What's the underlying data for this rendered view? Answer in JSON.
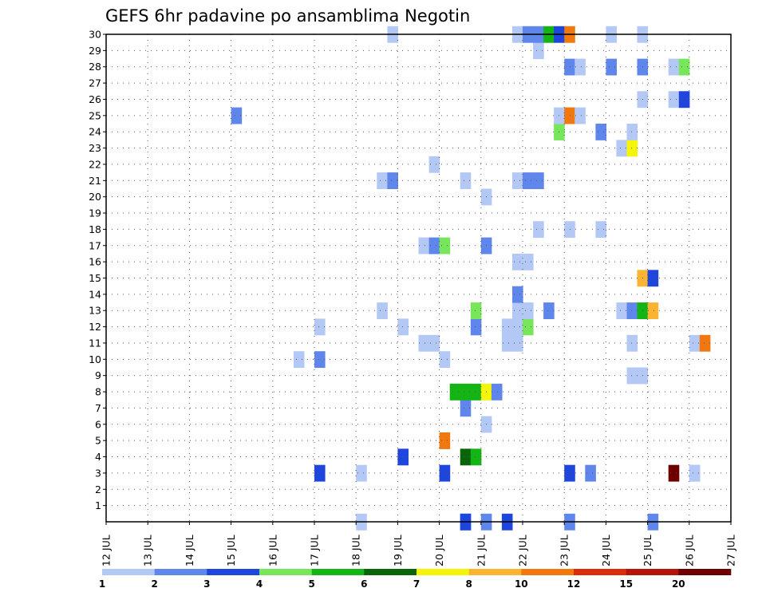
{
  "chart_data": {
    "type": "heatmap",
    "title": "GEFS 6hr padavine po ansamblima Negotin",
    "xlabel": "",
    "ylabel": "",
    "x_tick_labels": [
      "12 JUL",
      "13 JUL",
      "14 JUL",
      "15 JUL",
      "16 JUL",
      "17 JUL",
      "18 JUL",
      "19 JUL",
      "20 JUL",
      "21 JUL",
      "22 JUL",
      "23 JUL",
      "24 JUL",
      "25 JUL",
      "26 JUL",
      "27 JUL"
    ],
    "xlim": [
      0,
      60
    ],
    "x_units": "6-hour steps from 12 JUL 00Z",
    "y_tick_labels": [
      "1",
      "2",
      "3",
      "4",
      "5",
      "6",
      "7",
      "8",
      "9",
      "10",
      "11",
      "12",
      "13",
      "14",
      "15",
      "16",
      "17",
      "18",
      "19",
      "20",
      "21",
      "22",
      "23",
      "24",
      "25",
      "26",
      "27",
      "28",
      "29",
      "30"
    ],
    "ylim": [
      0,
      30
    ],
    "grid": true,
    "colorbar": {
      "labels": [
        "1",
        "2",
        "3",
        "4",
        "5",
        "6",
        "7",
        "8",
        "10",
        "12",
        "15",
        "20"
      ],
      "colors": [
        "#b4c8f5",
        "#5f87eb",
        "#1e46dc",
        "#78e65a",
        "#14b414",
        "#0a640a",
        "#f5f50a",
        "#fab432",
        "#f0780f",
        "#dc2d0a",
        "#b4140a",
        "#6e0000"
      ]
    },
    "cells": [
      {
        "x": 6.0,
        "y": 0,
        "c": 0
      },
      {
        "x": 8.5,
        "y": 0,
        "c": 1
      },
      {
        "x": 9.0,
        "y": 0,
        "c": 1
      },
      {
        "x": 8.5,
        "y": 0,
        "c": 2
      },
      {
        "x": 9.5,
        "y": 0,
        "c": 2
      },
      {
        "x": 11.0,
        "y": 0,
        "c": 1
      },
      {
        "x": 13.0,
        "y": 0,
        "c": 1
      },
      {
        "x": 5.0,
        "y": 3,
        "c": 2
      },
      {
        "x": 6.0,
        "y": 3,
        "c": 0
      },
      {
        "x": 8.0,
        "y": 3,
        "c": 2
      },
      {
        "x": 11.5,
        "y": 3,
        "c": 1
      },
      {
        "x": 11.0,
        "y": 3,
        "c": 2
      },
      {
        "x": 14.0,
        "y": 3,
        "c": 0
      },
      {
        "x": 13.5,
        "y": 3,
        "c": 11
      },
      {
        "x": 14.0,
        "y": 3,
        "c": 0
      },
      {
        "x": 7.0,
        "y": 4,
        "c": 2
      },
      {
        "x": 8.5,
        "y": 4,
        "c": 5
      },
      {
        "x": 8.75,
        "y": 4,
        "c": 4
      },
      {
        "x": 8.0,
        "y": 5,
        "c": 8
      },
      {
        "x": 9.0,
        "y": 6,
        "c": 0
      },
      {
        "x": 8.5,
        "y": 7,
        "c": 1
      },
      {
        "x": 8.25,
        "y": 8,
        "c": 4
      },
      {
        "x": 8.5,
        "y": 8,
        "c": 4
      },
      {
        "x": 8.75,
        "y": 8,
        "c": 4
      },
      {
        "x": 9.0,
        "y": 8,
        "c": 6
      },
      {
        "x": 9.25,
        "y": 8,
        "c": 1
      },
      {
        "x": 12.5,
        "y": 9,
        "c": 0
      },
      {
        "x": 12.75,
        "y": 9,
        "c": 0
      },
      {
        "x": 4.5,
        "y": 10,
        "c": 0
      },
      {
        "x": 5.0,
        "y": 10,
        "c": 1
      },
      {
        "x": 8.0,
        "y": 10,
        "c": 0
      },
      {
        "x": 7.5,
        "y": 11,
        "c": 0
      },
      {
        "x": 7.75,
        "y": 11,
        "c": 0
      },
      {
        "x": 9.5,
        "y": 11,
        "c": 0
      },
      {
        "x": 9.75,
        "y": 11,
        "c": 0
      },
      {
        "x": 12.5,
        "y": 11,
        "c": 0
      },
      {
        "x": 14.0,
        "y": 11,
        "c": 0
      },
      {
        "x": 14.25,
        "y": 11,
        "c": 8
      },
      {
        "x": 5.0,
        "y": 12,
        "c": 0
      },
      {
        "x": 7.0,
        "y": 12,
        "c": 0
      },
      {
        "x": 8.75,
        "y": 12,
        "c": 1
      },
      {
        "x": 9.5,
        "y": 12,
        "c": 0
      },
      {
        "x": 9.75,
        "y": 12,
        "c": 0
      },
      {
        "x": 10.0,
        "y": 12,
        "c": 3
      },
      {
        "x": 6.5,
        "y": 13,
        "c": 0
      },
      {
        "x": 8.75,
        "y": 13,
        "c": 3
      },
      {
        "x": 9.75,
        "y": 13,
        "c": 0
      },
      {
        "x": 10.0,
        "y": 13,
        "c": 0
      },
      {
        "x": 10.5,
        "y": 13,
        "c": 1
      },
      {
        "x": 12.25,
        "y": 13,
        "c": 0
      },
      {
        "x": 12.5,
        "y": 13,
        "c": 1
      },
      {
        "x": 12.75,
        "y": 13,
        "c": 4
      },
      {
        "x": 13.0,
        "y": 13,
        "c": 7
      },
      {
        "x": 9.75,
        "y": 14,
        "c": 1
      },
      {
        "x": 12.75,
        "y": 15,
        "c": 7
      },
      {
        "x": 13.0,
        "y": 15,
        "c": 2
      },
      {
        "x": 9.75,
        "y": 16,
        "c": 0
      },
      {
        "x": 10.0,
        "y": 16,
        "c": 0
      },
      {
        "x": 7.5,
        "y": 17,
        "c": 0
      },
      {
        "x": 7.75,
        "y": 17,
        "c": 1
      },
      {
        "x": 8.0,
        "y": 17,
        "c": 3
      },
      {
        "x": 9.0,
        "y": 17,
        "c": 1
      },
      {
        "x": 10.25,
        "y": 18,
        "c": 0
      },
      {
        "x": 11.0,
        "y": 18,
        "c": 0
      },
      {
        "x": 11.75,
        "y": 18,
        "c": 0
      },
      {
        "x": 9.0,
        "y": 20,
        "c": 0
      },
      {
        "x": 6.5,
        "y": 21,
        "c": 0
      },
      {
        "x": 6.75,
        "y": 21,
        "c": 1
      },
      {
        "x": 8.5,
        "y": 21,
        "c": 0
      },
      {
        "x": 9.75,
        "y": 21,
        "c": 0
      },
      {
        "x": 10.0,
        "y": 21,
        "c": 1
      },
      {
        "x": 10.25,
        "y": 21,
        "c": 1
      },
      {
        "x": 7.75,
        "y": 22,
        "c": 0
      },
      {
        "x": 12.25,
        "y": 23,
        "c": 0
      },
      {
        "x": 12.5,
        "y": 23,
        "c": 6
      },
      {
        "x": 10.75,
        "y": 24,
        "c": 3
      },
      {
        "x": 11.75,
        "y": 24,
        "c": 1
      },
      {
        "x": 12.5,
        "y": 24,
        "c": 0
      },
      {
        "x": 3.0,
        "y": 25,
        "c": 1
      },
      {
        "x": 10.75,
        "y": 25,
        "c": 0
      },
      {
        "x": 11.0,
        "y": 25,
        "c": 8
      },
      {
        "x": 11.25,
        "y": 25,
        "c": 0
      },
      {
        "x": 12.75,
        "y": 26,
        "c": 0
      },
      {
        "x": 13.5,
        "y": 26,
        "c": 0
      },
      {
        "x": 13.75,
        "y": 26,
        "c": 2
      },
      {
        "x": 11.0,
        "y": 28,
        "c": 1
      },
      {
        "x": 11.25,
        "y": 28,
        "c": 0
      },
      {
        "x": 12.0,
        "y": 28,
        "c": 1
      },
      {
        "x": 12.75,
        "y": 28,
        "c": 1
      },
      {
        "x": 13.5,
        "y": 28,
        "c": 0
      },
      {
        "x": 13.75,
        "y": 28,
        "c": 3
      },
      {
        "x": 10.25,
        "y": 29,
        "c": 0
      },
      {
        "x": 6.75,
        "y": 30,
        "c": 0
      },
      {
        "x": 9.75,
        "y": 30,
        "c": 0
      },
      {
        "x": 10.0,
        "y": 30,
        "c": 1
      },
      {
        "x": 10.25,
        "y": 30,
        "c": 1
      },
      {
        "x": 10.5,
        "y": 30,
        "c": 4
      },
      {
        "x": 10.75,
        "y": 30,
        "c": 2
      },
      {
        "x": 11.0,
        "y": 30,
        "c": 8
      },
      {
        "x": 12.0,
        "y": 30,
        "c": 0
      },
      {
        "x": 12.75,
        "y": 30,
        "c": 0
      }
    ]
  }
}
